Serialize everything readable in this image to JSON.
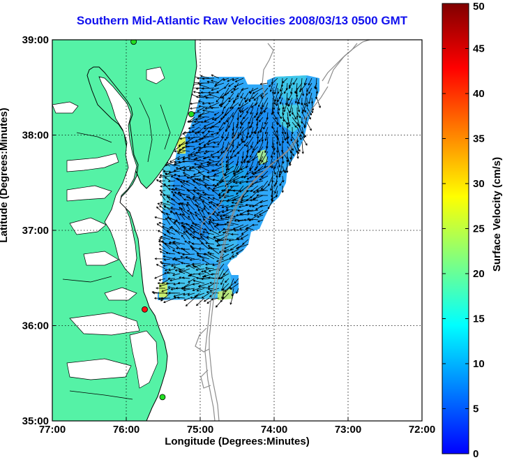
{
  "title": "Southern Mid-Atlantic Raw Velocities 2008/03/13 0500 GMT",
  "xlabel": "Longitude (Degrees:Minutes)",
  "ylabel": "Latitude (Degrees:Minutes)",
  "map": {
    "x_ticks": [
      {
        "value": -77,
        "label": "77:00"
      },
      {
        "value": -76,
        "label": "76:00"
      },
      {
        "value": -75,
        "label": "75:00"
      },
      {
        "value": -74,
        "label": "74:00"
      },
      {
        "value": -73,
        "label": "73:00"
      },
      {
        "value": -72,
        "label": "72:00"
      }
    ],
    "y_ticks": [
      {
        "value": 35,
        "label": "35:00"
      },
      {
        "value": 36,
        "label": "36:00"
      },
      {
        "value": 37,
        "label": "37:00"
      },
      {
        "value": 38,
        "label": "38:00"
      },
      {
        "value": 39,
        "label": "39:00"
      }
    ],
    "lon_range": [
      -77,
      -72
    ],
    "lat_range": [
      35,
      39
    ],
    "grid": true,
    "colors": {
      "land": "#55f2a6",
      "coast": "#000000",
      "bathymetry": "#8c8c8c",
      "grid": "#000000",
      "station": "#22dd22",
      "station_active": "#ff1111"
    },
    "stations": [
      {
        "lon": -75.9,
        "lat": 38.98,
        "active": false
      },
      {
        "lon": -75.12,
        "lat": 38.22,
        "active": false
      },
      {
        "lon": -75.75,
        "lat": 36.17,
        "active": true
      },
      {
        "lon": -75.51,
        "lat": 35.25,
        "active": false
      }
    ]
  },
  "colorbar": {
    "label": "Surface Velocity (cm/s)",
    "min": 0,
    "max": 50,
    "tick_labels": [
      "0",
      "5",
      "10",
      "15",
      "20",
      "25",
      "30",
      "35",
      "40",
      "45",
      "50"
    ],
    "colormap": [
      "#0000ff",
      "#0080ff",
      "#00ffff",
      "#80ff80",
      "#ffff00",
      "#ff8000",
      "#ff0000",
      "#800000"
    ]
  }
}
